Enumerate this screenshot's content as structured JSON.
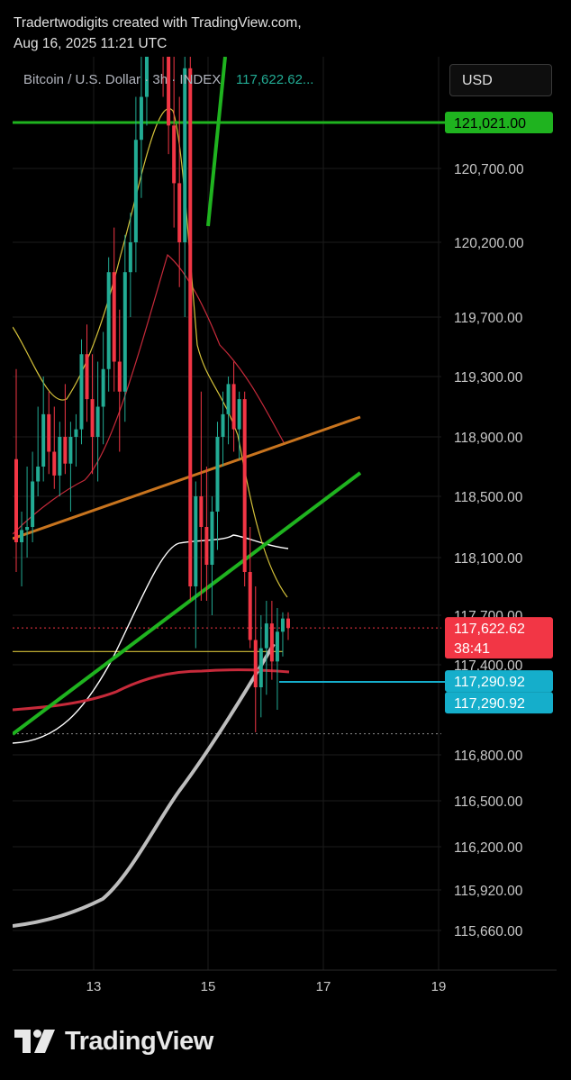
{
  "header": {
    "credit_line1": "Tradertwodigits created with TradingView.com,",
    "credit_line2": "Aug 16, 2025 11:21 UTC"
  },
  "legend": {
    "symbol": "Bitcoin / U.S. Dollar",
    "timeframe": "3h",
    "source": "INDEX",
    "price": "117,622.62..."
  },
  "currency_button": "USD",
  "footer": {
    "brand": "TradingView"
  },
  "colors": {
    "up": "#22ab94",
    "down": "#f23645",
    "green_line": "#1fb31f",
    "orange_line": "#c8741e",
    "yellow_ma": "#d4c13a",
    "red_ma": "#c62a3a",
    "white_ma": "#ffffff",
    "gray_ma": "#bdbdbd",
    "cyan": "#15aecb"
  },
  "chart_data": {
    "type": "candlestick",
    "timeframe": "3h",
    "x_ticks": [
      "13",
      "15",
      "17",
      "19"
    ],
    "y_ticks": [
      "120,700.00",
      "120,200.00",
      "119,700.00",
      "119,300.00",
      "118,900.00",
      "118,500.00",
      "118,100.00",
      "117,700.00",
      "117,400.00",
      "116,800.00",
      "116,500.00",
      "116,200.00",
      "115,920.00",
      "115,660.00"
    ],
    "grid": true,
    "price_labels": [
      {
        "text": "121,021.00",
        "value": 121021,
        "color": "#1fb31f"
      },
      {
        "text": "117,622.62",
        "value": 117622.62,
        "sub": "38:41",
        "color": "#f23645"
      },
      {
        "text": "117,290.92",
        "value": 117290.92,
        "color": "#15aecb"
      },
      {
        "text": "117,290.92",
        "value": 117290.92,
        "color": "#15aecb",
        "offset_row": 1
      }
    ],
    "candles_ohlc": [
      [
        118750,
        119350,
        118000,
        118200
      ],
      [
        118200,
        118400,
        117900,
        118280
      ],
      [
        118280,
        118700,
        118100,
        118300
      ],
      [
        118300,
        118800,
        118200,
        118600
      ],
      [
        118600,
        119100,
        118500,
        118700
      ],
      [
        118700,
        119300,
        118600,
        119050
      ],
      [
        119050,
        119200,
        118650,
        118800
      ],
      [
        118800,
        119100,
        118550,
        118640
      ],
      [
        118640,
        119000,
        118500,
        118900
      ],
      [
        118900,
        119250,
        118650,
        118720
      ],
      [
        118720,
        119000,
        118400,
        118900
      ],
      [
        118900,
        119050,
        118700,
        118950
      ],
      [
        118950,
        119550,
        118850,
        119450
      ],
      [
        119450,
        119650,
        119000,
        119150
      ],
      [
        119150,
        119450,
        118650,
        118900
      ],
      [
        118900,
        119400,
        118600,
        119100
      ],
      [
        119100,
        119600,
        118850,
        119350
      ],
      [
        119350,
        120100,
        119200,
        120000
      ],
      [
        120000,
        120300,
        119200,
        119400
      ],
      [
        119400,
        119750,
        118800,
        119200
      ],
      [
        119200,
        120250,
        119000,
        120000
      ],
      [
        120000,
        120400,
        119700,
        120200
      ],
      [
        120200,
        121200,
        120000,
        120900
      ],
      [
        120900,
        121500,
        120500,
        121200
      ],
      [
        121200,
        123000,
        121000,
        122800
      ],
      [
        122800,
        123300,
        122200,
        122900
      ],
      [
        122900,
        123400,
        121500,
        121900
      ],
      [
        121900,
        122600,
        121200,
        121500
      ],
      [
        121500,
        122100,
        120800,
        121000
      ],
      [
        121000,
        121500,
        120300,
        120600
      ],
      [
        120600,
        121200,
        119900,
        120200
      ],
      [
        120200,
        121800,
        119700,
        121400
      ],
      [
        121400,
        121600,
        117800,
        117900
      ],
      [
        117900,
        118600,
        117500,
        118500
      ],
      [
        118500,
        119200,
        117800,
        118300
      ],
      [
        118300,
        118700,
        117800,
        118050
      ],
      [
        118050,
        118500,
        117700,
        118400
      ],
      [
        118400,
        119000,
        118150,
        118900
      ],
      [
        118900,
        119200,
        118700,
        119050
      ],
      [
        119050,
        119300,
        118850,
        119250
      ],
      [
        119250,
        119400,
        118800,
        118950
      ],
      [
        118950,
        119200,
        118750,
        119150
      ],
      [
        119150,
        119200,
        117900,
        118000
      ],
      [
        118000,
        118300,
        117500,
        117550
      ],
      [
        117550,
        117900,
        116950,
        117250
      ],
      [
        117250,
        117700,
        117050,
        117500
      ],
      [
        117500,
        117800,
        117200,
        117650
      ],
      [
        117650,
        117800,
        117300,
        117420
      ],
      [
        117420,
        117750,
        117100,
        117600
      ],
      [
        117600,
        117720,
        117450,
        117680
      ],
      [
        117680,
        117720,
        117550,
        117622.62
      ]
    ]
  }
}
